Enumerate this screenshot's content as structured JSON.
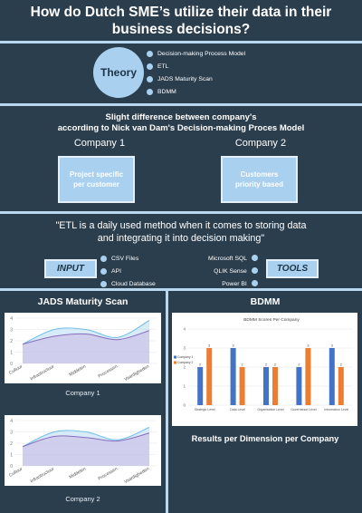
{
  "title": "How do Dutch SME’s utilize their data in their business decisions?",
  "theory": {
    "label": "Theory",
    "items": [
      "Decision-making Process Model",
      "ETL",
      "JADS Maturity Scan",
      "BDMM"
    ]
  },
  "difference": {
    "heading_line1": "Slight difference between company's",
    "heading_line2": "according to Nick van Dam's Decision-making Proces Model",
    "company1": "Company  1",
    "company2": "Company  2",
    "box1": "Project specific per customer",
    "box2": "Customers priority based"
  },
  "etl": {
    "quote_line1": "\"ETL is a daily used method when it comes to storing data",
    "quote_line2": "and integrating it into decision making\"",
    "input_label": "INPUT",
    "tools_label": "TOOLS",
    "inputs": [
      "CSV Files",
      "API",
      "Cloud Database"
    ],
    "tools": [
      "Microsoft SQL",
      "QLIK Sense",
      "Power BI"
    ]
  },
  "jads": {
    "title": "JADS Maturity Scan",
    "caption1": "Company 1",
    "caption2": "Company 2"
  },
  "bdmm": {
    "title": "BDMM",
    "footer": "Results per Dimension per Company"
  },
  "colors": {
    "background": "#2b3e4e",
    "accent": "#a9d1ef",
    "series_blue": "#4472c4",
    "series_orange": "#ed7d31"
  },
  "chart_data": [
    {
      "type": "area",
      "categories": [
        "Cultuur",
        "Infrastructuur",
        "Middelen",
        "Processen",
        "Vaardigheden"
      ],
      "series": [
        {
          "values": [
            1.7,
            3.0,
            3.0,
            2.3,
            3.8
          ]
        },
        {
          "values": [
            1.7,
            2.4,
            2.6,
            2.1,
            2.9
          ]
        }
      ],
      "ylim": [
        0,
        4
      ],
      "yticks": [
        "0",
        "1",
        "2",
        "3",
        "4"
      ],
      "caption": "Company 1"
    },
    {
      "type": "area",
      "categories": [
        "Cultuur",
        "Infrastructuur",
        "Middelen",
        "Processen",
        "Vaardigheden"
      ],
      "series": [
        {
          "values": [
            1.7,
            3.0,
            3.0,
            2.3,
            3.4
          ]
        },
        {
          "values": [
            1.7,
            2.6,
            2.5,
            2.2,
            2.9
          ]
        }
      ],
      "ylim": [
        0,
        4
      ],
      "yticks": [
        "0",
        "1",
        "2",
        "3",
        "4"
      ],
      "caption": "Company 2"
    },
    {
      "type": "bar",
      "title": "BDMM Scores Per Company",
      "categories": [
        "Strategic Level",
        "Data Level",
        "Organisation Level",
        "Governance Level",
        "Information Level"
      ],
      "series": [
        {
          "name": "Company 1",
          "values": [
            2,
            3,
            2,
            2,
            3
          ]
        },
        {
          "name": "Company 2",
          "values": [
            3,
            2,
            2,
            3,
            2
          ]
        }
      ],
      "ylim": [
        0,
        4
      ],
      "yticks": [
        "0",
        "1",
        "2",
        "3",
        "4"
      ]
    }
  ]
}
